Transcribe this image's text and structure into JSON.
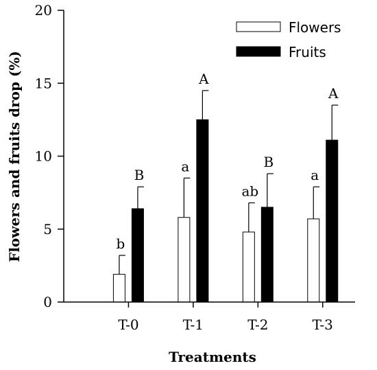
{
  "chart_data": {
    "type": "bar",
    "categories": [
      "T-0",
      "T-1",
      "T-2",
      "T-3"
    ],
    "xlabel": "Treatments",
    "ylabel": "Flowers and fruits drop (%)",
    "ylim": [
      0,
      20
    ],
    "yticks": [
      0,
      5,
      10,
      15,
      20
    ],
    "grid": false,
    "legend_position": "top-right",
    "series": [
      {
        "name": "Flowers",
        "fill": "#ffffff",
        "values": [
          1.9,
          5.8,
          4.8,
          5.7
        ],
        "errors": [
          1.3,
          2.7,
          2.0,
          2.2
        ],
        "labels": [
          "b",
          "a",
          "ab",
          "a"
        ]
      },
      {
        "name": "Fruits",
        "fill": "#000000",
        "values": [
          6.4,
          12.5,
          6.5,
          11.1
        ],
        "errors": [
          1.5,
          2.0,
          2.3,
          2.4
        ],
        "labels": [
          "B",
          "A",
          "B",
          "A"
        ]
      }
    ]
  }
}
